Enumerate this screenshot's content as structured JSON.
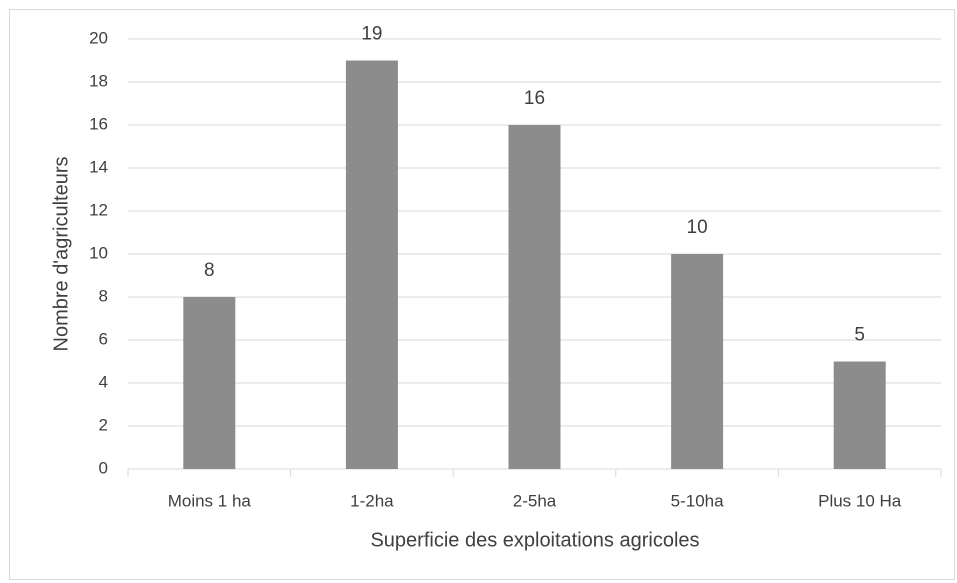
{
  "chart_data": {
    "type": "bar",
    "categories": [
      "Moins 1 ha",
      "1-2ha",
      "2-5ha",
      "5-10ha",
      "Plus 10 Ha"
    ],
    "values": [
      8,
      19,
      16,
      10,
      5
    ],
    "color": "#8c8c8c",
    "x_label": "Superficie des exploitations agricoles",
    "y_label": "Nombre d'agriculteurs",
    "ylim": [
      0,
      20
    ],
    "yticks": [
      0,
      2,
      4,
      6,
      8,
      10,
      12,
      14,
      16,
      18,
      20
    ],
    "grid": true
  }
}
